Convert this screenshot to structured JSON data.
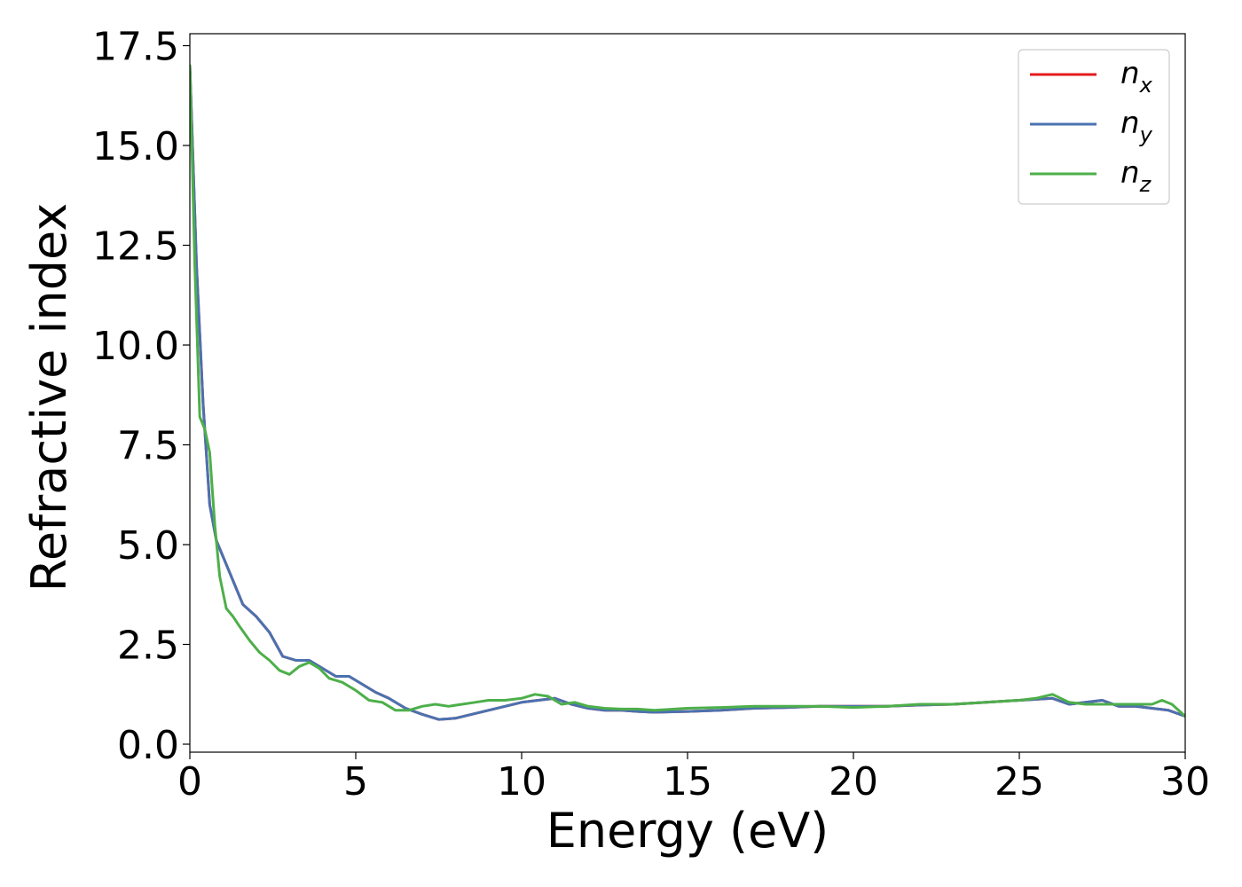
{
  "chart_data": {
    "type": "line",
    "xlabel": "Energy (eV)",
    "ylabel": "Refractive index",
    "xlim": [
      0,
      30
    ],
    "ylim": [
      -0.2,
      17.8
    ],
    "xticks": [
      "0",
      "5",
      "10",
      "15",
      "20",
      "25",
      "30"
    ],
    "yticks": [
      "0.0",
      "2.5",
      "5.0",
      "7.5",
      "10.0",
      "12.5",
      "15.0",
      "17.5"
    ],
    "grid": false,
    "legend_position": "top-right",
    "series": [
      {
        "name": "n",
        "subscript": "x",
        "color": "#e41a1c",
        "x": [
          0,
          0.2,
          0.4,
          0.6,
          0.8,
          1.0,
          1.3,
          1.6,
          2.0,
          2.4,
          2.8,
          3.2,
          3.6,
          4.0,
          4.4,
          4.8,
          5.2,
          5.6,
          6.0,
          6.5,
          7.0,
          7.5,
          8.0,
          8.5,
          9.0,
          9.5,
          10.0,
          10.5,
          11.0,
          11.5,
          12.0,
          12.5,
          13.0,
          13.5,
          14.0,
          15.0,
          16.0,
          17.0,
          18.0,
          19.0,
          20.0,
          21.0,
          22.0,
          23.0,
          24.0,
          25.0,
          26.0,
          26.5,
          27.0,
          27.5,
          28.0,
          28.5,
          29.0,
          29.5,
          30.0
        ],
        "y": [
          17.0,
          12.0,
          8.5,
          6.0,
          5.1,
          4.7,
          4.1,
          3.5,
          3.2,
          2.8,
          2.2,
          2.1,
          2.1,
          1.9,
          1.7,
          1.7,
          1.5,
          1.3,
          1.15,
          0.9,
          0.75,
          0.62,
          0.65,
          0.75,
          0.85,
          0.95,
          1.05,
          1.1,
          1.15,
          1.0,
          0.9,
          0.85,
          0.85,
          0.82,
          0.8,
          0.82,
          0.85,
          0.9,
          0.92,
          0.95,
          0.95,
          0.95,
          0.98,
          1.0,
          1.05,
          1.1,
          1.15,
          1.0,
          1.05,
          1.1,
          0.95,
          0.95,
          0.9,
          0.85,
          0.7
        ]
      },
      {
        "name": "n",
        "subscript": "y",
        "color": "#4a72b0",
        "x": [
          0,
          0.2,
          0.4,
          0.6,
          0.8,
          1.0,
          1.3,
          1.6,
          2.0,
          2.4,
          2.8,
          3.2,
          3.6,
          4.0,
          4.4,
          4.8,
          5.2,
          5.6,
          6.0,
          6.5,
          7.0,
          7.5,
          8.0,
          8.5,
          9.0,
          9.5,
          10.0,
          10.5,
          11.0,
          11.5,
          12.0,
          12.5,
          13.0,
          13.5,
          14.0,
          15.0,
          16.0,
          17.0,
          18.0,
          19.0,
          20.0,
          21.0,
          22.0,
          23.0,
          24.0,
          25.0,
          26.0,
          26.5,
          27.0,
          27.5,
          28.0,
          28.5,
          29.0,
          29.5,
          30.0
        ],
        "y": [
          17.0,
          12.0,
          8.5,
          6.0,
          5.1,
          4.7,
          4.1,
          3.5,
          3.2,
          2.8,
          2.2,
          2.1,
          2.1,
          1.9,
          1.7,
          1.7,
          1.5,
          1.3,
          1.15,
          0.9,
          0.75,
          0.62,
          0.65,
          0.75,
          0.85,
          0.95,
          1.05,
          1.1,
          1.15,
          1.0,
          0.9,
          0.85,
          0.85,
          0.82,
          0.8,
          0.82,
          0.85,
          0.9,
          0.92,
          0.95,
          0.95,
          0.95,
          0.98,
          1.0,
          1.05,
          1.1,
          1.15,
          1.0,
          1.05,
          1.1,
          0.95,
          0.95,
          0.9,
          0.85,
          0.7
        ]
      },
      {
        "name": "n",
        "subscript": "z",
        "color": "#4daf4a",
        "x": [
          0,
          0.15,
          0.3,
          0.45,
          0.6,
          0.75,
          0.9,
          1.1,
          1.3,
          1.5,
          1.8,
          2.1,
          2.4,
          2.7,
          3.0,
          3.3,
          3.6,
          3.9,
          4.2,
          4.6,
          5.0,
          5.4,
          5.8,
          6.2,
          6.6,
          7.0,
          7.4,
          7.8,
          8.2,
          8.6,
          9.0,
          9.5,
          10.0,
          10.4,
          10.8,
          11.2,
          11.6,
          12.0,
          12.5,
          13.0,
          13.5,
          14.0,
          15.0,
          16.0,
          17.0,
          18.0,
          19.0,
          20.0,
          21.0,
          22.0,
          23.0,
          24.0,
          25.0,
          25.5,
          26.0,
          26.5,
          27.0,
          27.5,
          28.0,
          28.5,
          29.0,
          29.3,
          29.6,
          30.0
        ],
        "y": [
          17.0,
          12.0,
          8.2,
          7.9,
          7.3,
          5.5,
          4.2,
          3.4,
          3.2,
          2.95,
          2.6,
          2.3,
          2.1,
          1.85,
          1.75,
          1.95,
          2.05,
          1.9,
          1.65,
          1.55,
          1.35,
          1.1,
          1.05,
          0.85,
          0.85,
          0.95,
          1.0,
          0.95,
          1.0,
          1.05,
          1.1,
          1.1,
          1.15,
          1.25,
          1.2,
          1.0,
          1.05,
          0.95,
          0.9,
          0.88,
          0.88,
          0.85,
          0.9,
          0.92,
          0.95,
          0.95,
          0.95,
          0.92,
          0.95,
          1.0,
          1.0,
          1.05,
          1.1,
          1.15,
          1.25,
          1.05,
          1.0,
          1.0,
          1.0,
          1.0,
          1.0,
          1.1,
          1.0,
          0.7
        ]
      }
    ]
  }
}
